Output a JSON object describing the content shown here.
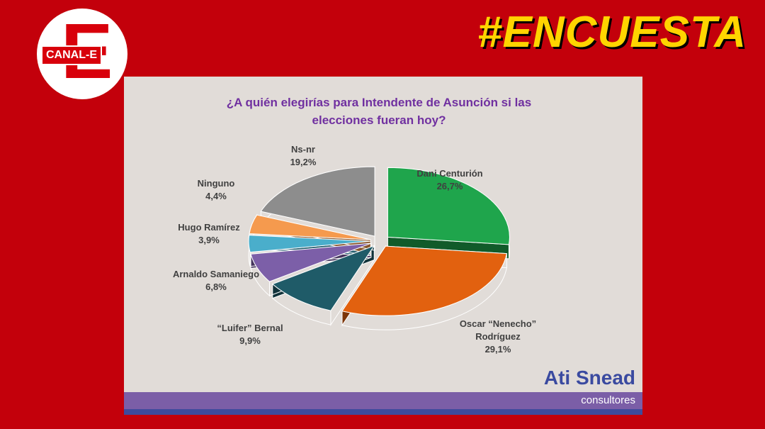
{
  "header": {
    "logo": "CANAL-E",
    "tag": "#ENCUESTA"
  },
  "chart_data": {
    "type": "pie",
    "title": "¿A quién elegirías para Intendente de Asunción si las elecciones fueran hoy?",
    "categories": [
      "Dani Centurión",
      "Oscar “Nenecho” Rodríguez",
      "“Luifer” Bernal",
      "Arnaldo Samaniego",
      "Hugo Ramírez",
      "Ninguno",
      "Ns-nr"
    ],
    "values": [
      26.7,
      29.1,
      9.9,
      6.8,
      3.9,
      4.4,
      19.2
    ],
    "value_labels": [
      "26,7%",
      "29,1%",
      "9,9%",
      "6,8%",
      "3,9%",
      "4,4%",
      "19,2%"
    ],
    "colors": [
      "#1fa54c",
      "#e2610f",
      "#1f5b68",
      "#7c5fa8",
      "#4aaecb",
      "#f59a4e",
      "#8d8d8d"
    ]
  },
  "footer": {
    "brand": "Ati Snead",
    "sub": "consultores"
  }
}
